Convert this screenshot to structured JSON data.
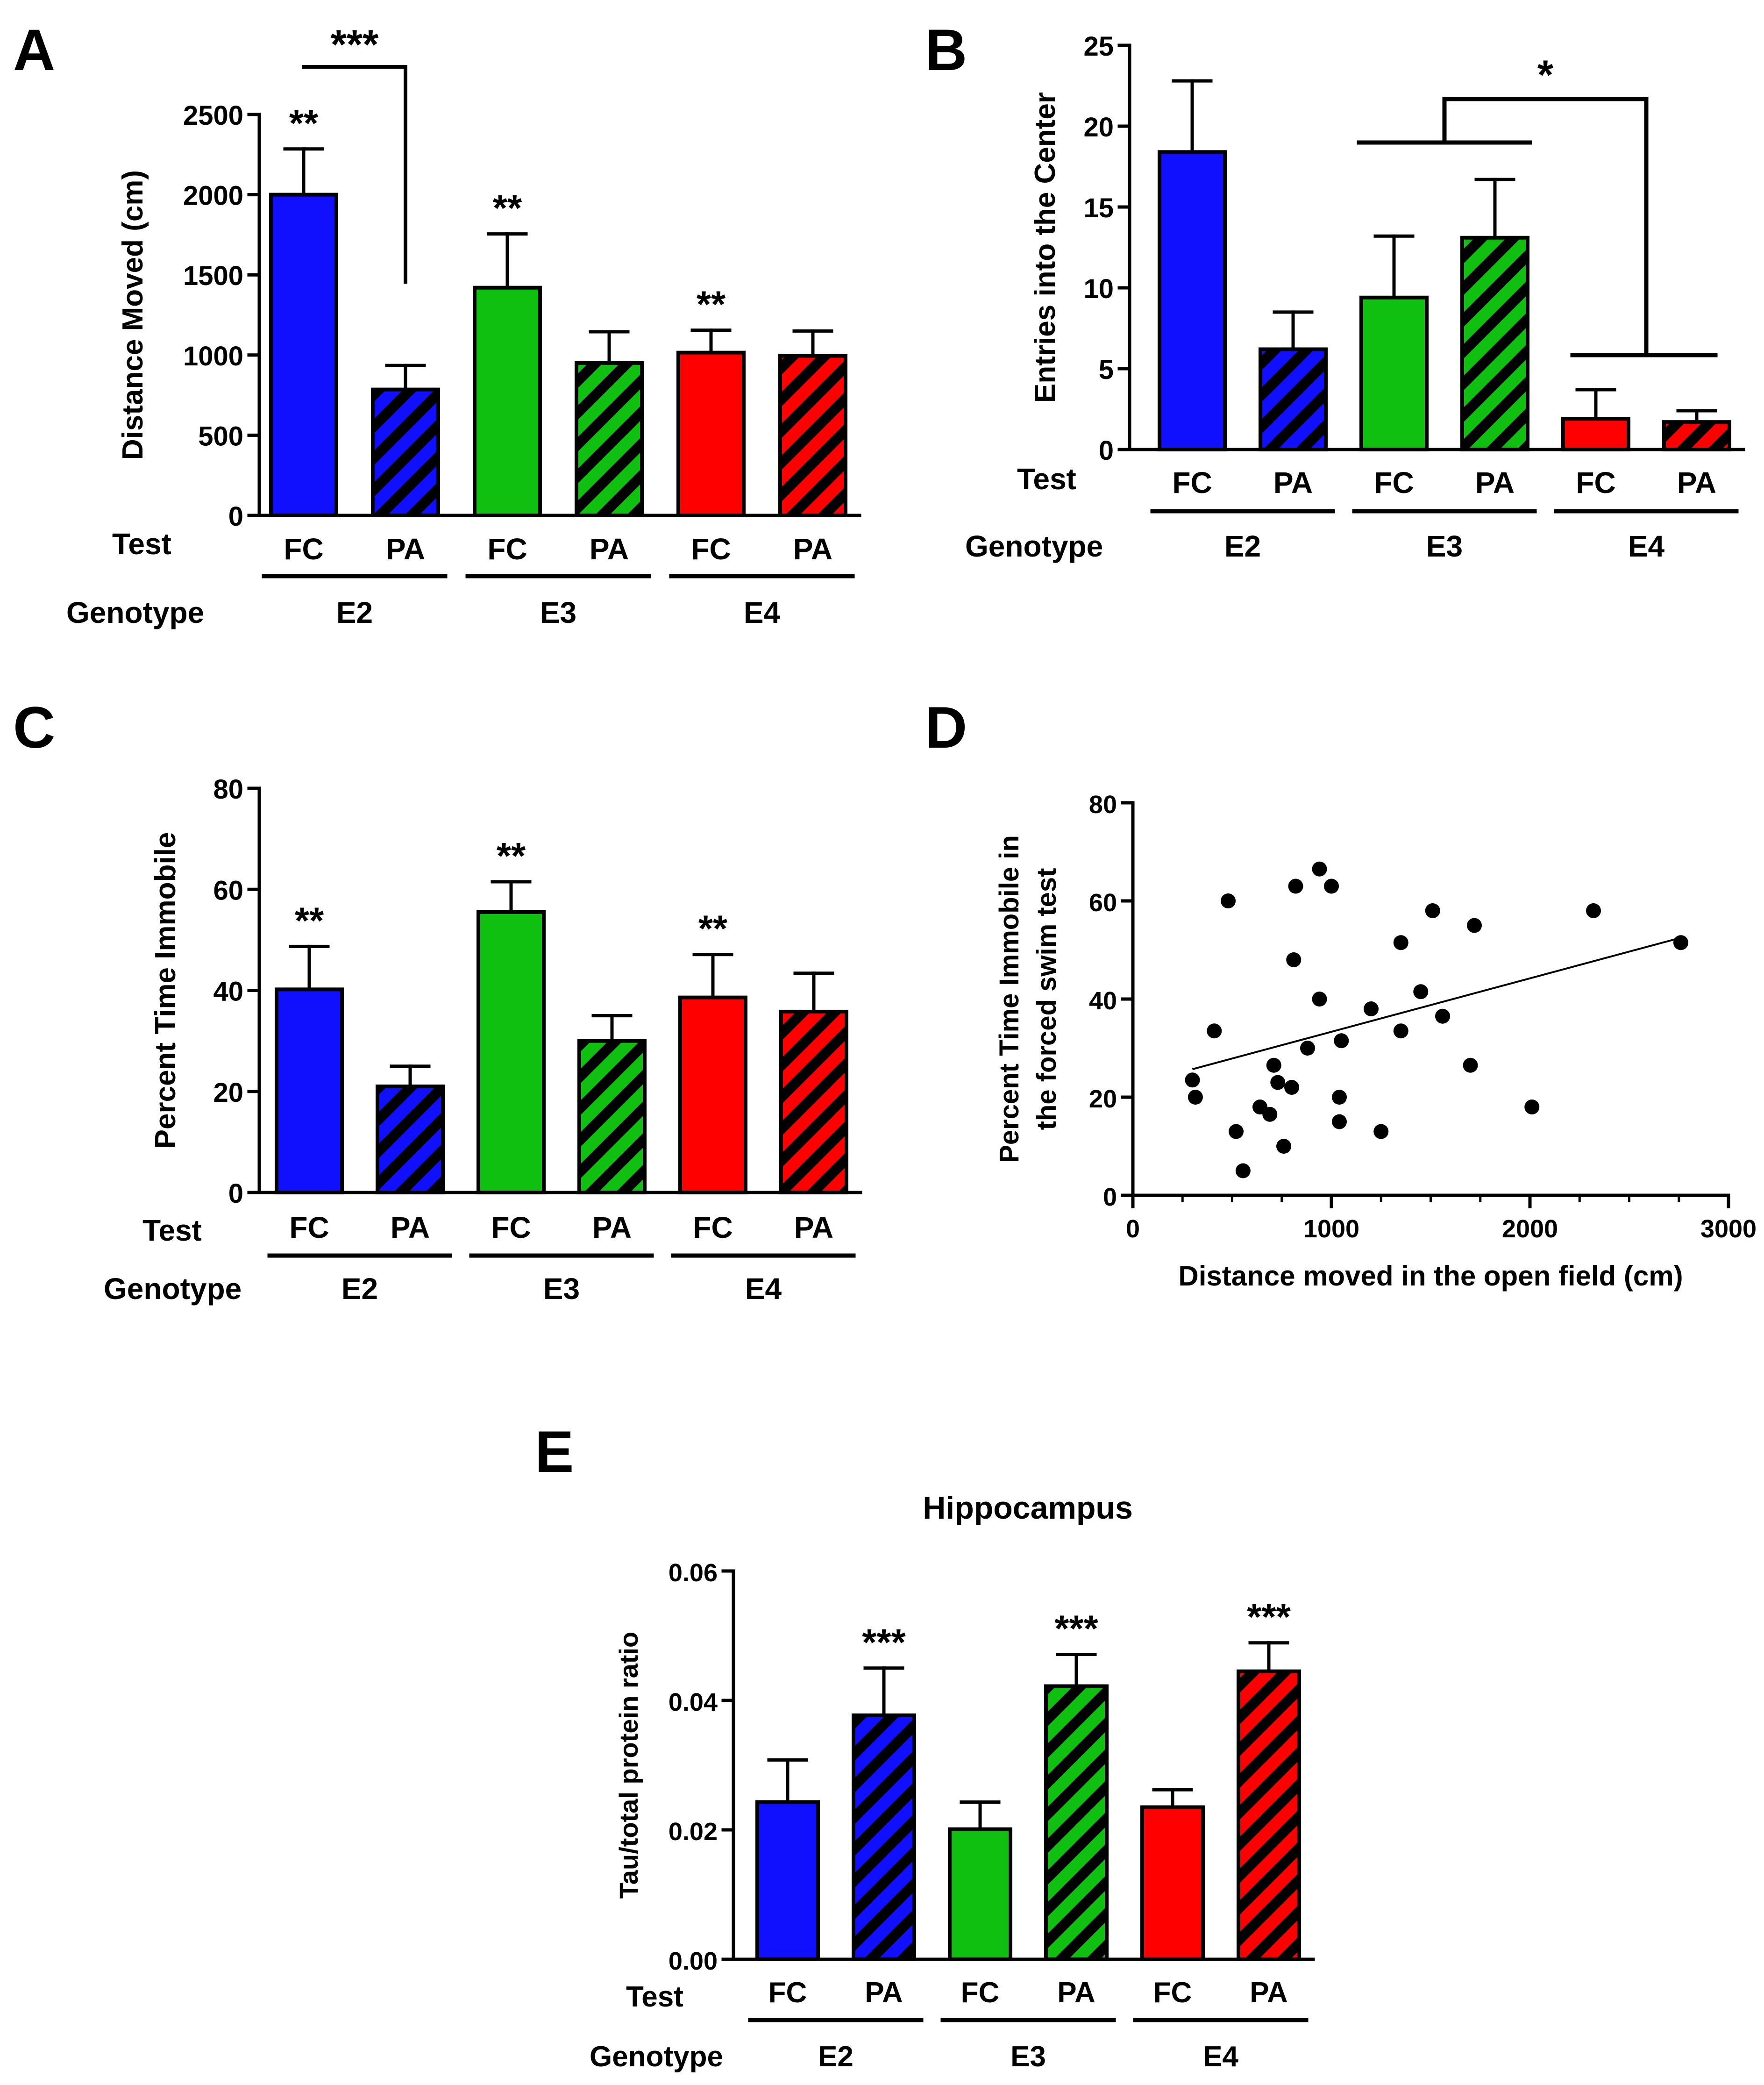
{
  "figure": {
    "hatch_color": "#000000",
    "colors": {
      "E2": "#1010ff",
      "E3": "#10c010",
      "E4": "#ff0000"
    },
    "row_labels": {
      "test": "Test",
      "genotype": "Genotype"
    }
  },
  "chart_data": [
    {
      "panel": "A",
      "type": "bar",
      "title": "",
      "ylabel": "Distance Moved (cm)",
      "ylim": [
        0,
        2500
      ],
      "yticks": [
        0,
        500,
        1000,
        1500,
        2000,
        2500
      ],
      "ytick_labels": [
        "0",
        "500",
        "1000",
        "1500",
        "2000",
        "2500"
      ],
      "categories": [
        "FC",
        "PA",
        "FC",
        "PA",
        "FC",
        "PA"
      ],
      "genotypes": [
        "E2",
        "E2",
        "E3",
        "E3",
        "E4",
        "E4"
      ],
      "genotype_labels": [
        "E2",
        "E3",
        "E4"
      ],
      "hatched": [
        false,
        true,
        false,
        true,
        false,
        true
      ],
      "values": [
        2000,
        785,
        1420,
        950,
        1015,
        995
      ],
      "errors": [
        285,
        150,
        335,
        195,
        140,
        155
      ],
      "stars": [
        "**",
        "",
        "**",
        "",
        "**",
        ""
      ],
      "bracket_label": "***"
    },
    {
      "panel": "B",
      "type": "bar",
      "title": "",
      "ylabel": "Entries into the Center",
      "ylim": [
        0,
        25
      ],
      "yticks": [
        0,
        5,
        10,
        15,
        20,
        25
      ],
      "ytick_labels": [
        "0",
        "5",
        "10",
        "15",
        "20",
        "25"
      ],
      "categories": [
        "FC",
        "PA",
        "FC",
        "PA",
        "FC",
        "PA"
      ],
      "genotypes": [
        "E2",
        "E2",
        "E3",
        "E3",
        "E4",
        "E4"
      ],
      "genotype_labels": [
        "E2",
        "E3",
        "E4"
      ],
      "hatched": [
        false,
        true,
        false,
        true,
        false,
        true
      ],
      "values": [
        18.4,
        6.2,
        9.4,
        13.1,
        1.9,
        1.7
      ],
      "errors": [
        4.4,
        2.3,
        3.8,
        3.6,
        1.8,
        0.7
      ],
      "stars": [
        "",
        "",
        "",
        "",
        "",
        ""
      ],
      "bracket_label": "*"
    },
    {
      "panel": "C",
      "type": "bar",
      "title": "",
      "ylabel": "Percent Time Immobile",
      "ylim": [
        0,
        80
      ],
      "yticks": [
        0,
        20,
        40,
        60,
        80
      ],
      "ytick_labels": [
        "0",
        "20",
        "40",
        "60",
        "80"
      ],
      "categories": [
        "FC",
        "PA",
        "FC",
        "PA",
        "FC",
        "PA"
      ],
      "genotypes": [
        "E2",
        "E2",
        "E3",
        "E3",
        "E4",
        "E4"
      ],
      "genotype_labels": [
        "E2",
        "E3",
        "E4"
      ],
      "hatched": [
        false,
        true,
        false,
        true,
        false,
        true
      ],
      "values": [
        40.2,
        21.0,
        55.5,
        30.0,
        38.6,
        35.8
      ],
      "errors": [
        8.5,
        4.0,
        6.0,
        5.0,
        8.5,
        7.6
      ],
      "stars": [
        "**",
        "",
        "**",
        "",
        "**",
        ""
      ]
    },
    {
      "panel": "D",
      "type": "scatter",
      "title": "",
      "xlabel": "Distance moved in the open field (cm)",
      "ylabel_lines": [
        "Percent Time Immobile in",
        "the forced swim test"
      ],
      "xlim": [
        0,
        3000
      ],
      "ylim": [
        0,
        80
      ],
      "xticks": [
        0,
        1000,
        2000,
        3000
      ],
      "xtick_labels": [
        "0",
        "1000",
        "2000",
        "3000"
      ],
      "yticks": [
        0,
        20,
        40,
        60,
        80
      ],
      "ytick_labels": [
        "0",
        "20",
        "40",
        "60",
        "80"
      ],
      "x": [
        300,
        315,
        410,
        480,
        520,
        555,
        640,
        690,
        710,
        730,
        760,
        800,
        810,
        820,
        880,
        940,
        940,
        1000,
        1040,
        1040,
        1050,
        1200,
        1250,
        1350,
        1350,
        1450,
        1510,
        1560,
        1700,
        1720,
        2010,
        2320,
        2760
      ],
      "y": [
        23.5,
        20,
        33.5,
        60,
        13,
        5,
        18,
        16.5,
        26.5,
        23,
        10,
        22,
        48,
        63,
        30,
        40,
        66.5,
        63,
        15,
        20,
        31.5,
        38,
        13,
        33.5,
        51.5,
        41.5,
        58,
        36.5,
        26.5,
        55,
        18,
        58,
        51.5
      ],
      "fit_line": {
        "x": [
          300,
          2760
        ],
        "y": [
          25.7,
          52.5
        ]
      }
    },
    {
      "panel": "E",
      "type": "bar",
      "title": "Hippocampus",
      "ylabel": "Tau/total protein ratio",
      "ylim": [
        0,
        0.06
      ],
      "yticks": [
        0,
        0.02,
        0.04,
        0.06
      ],
      "ytick_labels": [
        "0.00",
        "0.02",
        "0.04",
        "0.06"
      ],
      "categories": [
        "FC",
        "PA",
        "FC",
        "PA",
        "FC",
        "PA"
      ],
      "genotypes": [
        "E2",
        "E2",
        "E3",
        "E3",
        "E4",
        "E4"
      ],
      "genotype_labels": [
        "E2",
        "E3",
        "E4"
      ],
      "hatched": [
        false,
        true,
        false,
        true,
        false,
        true
      ],
      "values": [
        0.0243,
        0.0377,
        0.0201,
        0.0422,
        0.0235,
        0.0445
      ],
      "errors": [
        0.0065,
        0.0073,
        0.0042,
        0.0049,
        0.0027,
        0.0044
      ],
      "stars": [
        "",
        "***",
        "",
        "***",
        "",
        "***"
      ]
    }
  ]
}
